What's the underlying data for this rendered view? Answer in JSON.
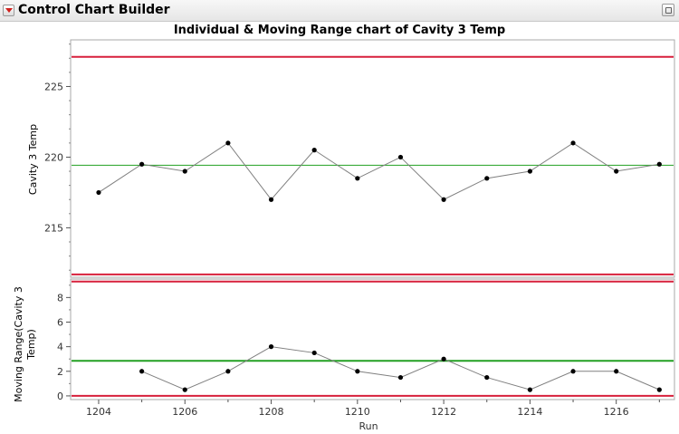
{
  "app": {
    "title": "Control Chart Builder"
  },
  "chart_data": {
    "type": "line",
    "title": "Individual & Moving Range chart of Cavity 3 Temp",
    "xlabel": "Run",
    "x": [
      1204,
      1205,
      1206,
      1207,
      1208,
      1209,
      1210,
      1211,
      1212,
      1213,
      1214,
      1215,
      1216,
      1217
    ],
    "x_ticks": [
      "1204",
      "1206",
      "1208",
      "1210",
      "1212",
      "1214",
      "1216"
    ],
    "grid": false,
    "colors": {
      "data_line": "#808080",
      "marker": "#000000",
      "center_line": "#22a022",
      "limit_line": "#d7203c"
    },
    "individuals": {
      "ylabel": "Cavity 3 Temp",
      "ylim": [
        211.5,
        228.3
      ],
      "y_ticks": [
        215,
        220,
        225
      ],
      "values": [
        217.5,
        219.5,
        219.0,
        221.0,
        217.0,
        220.5,
        218.5,
        220.0,
        217.0,
        218.5,
        219.0,
        221.0,
        219.0,
        219.5
      ],
      "center": 219.43,
      "ucl": 227.1,
      "lcl": 211.7
    },
    "moving_range": {
      "ylabel": "Moving Range(Cavity 3 Temp)",
      "ylim": [
        -0.3,
        9.5
      ],
      "y_ticks": [
        0,
        2,
        4,
        6,
        8
      ],
      "values": [
        null,
        2.0,
        0.5,
        2.0,
        4.0,
        3.5,
        2.0,
        1.5,
        3.0,
        1.5,
        0.5,
        2.0,
        2.0,
        0.5
      ],
      "center": 2.85,
      "ucl": 9.3,
      "lcl": 0
    }
  }
}
